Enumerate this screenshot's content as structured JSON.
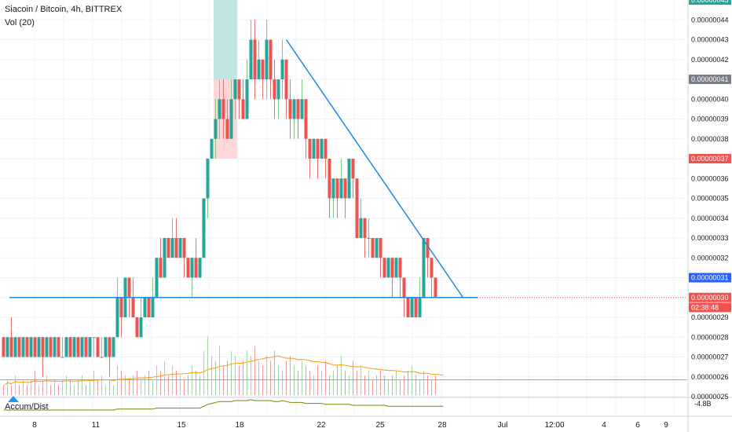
{
  "header": {
    "symbol_title": "Siacoin / Bitcoin, 4h, BITTREX",
    "volume_label": "Vol (20)",
    "indicator_label": "Accum/Dist"
  },
  "chart_data": {
    "type": "candlestick",
    "title": "Siacoin / Bitcoin, 4h, BITTREX",
    "price_axis": {
      "ticks": [
        "0.00000044",
        "0.00000043",
        "0.00000042",
        "0.00000041",
        "0.00000040",
        "0.00000039",
        "0.00000038",
        "0.00000037",
        "0.00000036",
        "0.00000035",
        "0.00000034",
        "0.00000033",
        "0.00000032",
        "0.00000031",
        "0.00000030",
        "0.00000029",
        "0.00000028",
        "0.00000027",
        "0.00000026",
        "0.00000025"
      ],
      "range": [
        2.5e-07,
        4.5e-07
      ]
    },
    "indicator_axis": {
      "ticks": [
        "-4.8B"
      ]
    },
    "time_axis": {
      "ticks": [
        "8",
        "11",
        "15",
        "18",
        "22",
        "25",
        "28",
        "Jul",
        "12:00",
        "4",
        "6",
        "9"
      ]
    },
    "price_tags": [
      {
        "label": "0.00000045",
        "color": "#26a69a",
        "value": 4.5e-07
      },
      {
        "label": "0.00000041",
        "color": "#787b86",
        "value": 4.1e-07
      },
      {
        "label": "0.00000037",
        "color": "#ef5350",
        "value": 3.7e-07
      },
      {
        "label": "0.00000031",
        "color": "#2962ff",
        "value": 3.1e-07
      },
      {
        "label": "0.00000030",
        "color": "#ef5350",
        "value": 3e-07
      },
      {
        "label": "02:38:48",
        "color": "#ef5350",
        "value": 2.95e-07
      }
    ],
    "candles": [
      {
        "o": 28,
        "c": 27,
        "h": 28,
        "l": 27
      },
      {
        "o": 27,
        "c": 28,
        "h": 28,
        "l": 27
      },
      {
        "o": 28,
        "c": 27,
        "h": 29,
        "l": 27
      },
      {
        "o": 27,
        "c": 28,
        "h": 28,
        "l": 27
      },
      {
        "o": 28,
        "c": 27,
        "h": 28,
        "l": 27
      },
      {
        "o": 27,
        "c": 28,
        "h": 28,
        "l": 27
      },
      {
        "o": 28,
        "c": 27,
        "h": 28,
        "l": 27
      },
      {
        "o": 27,
        "c": 28,
        "h": 28,
        "l": 27
      },
      {
        "o": 28,
        "c": 27,
        "h": 28,
        "l": 27
      },
      {
        "o": 27,
        "c": 28,
        "h": 28,
        "l": 27
      },
      {
        "o": 28,
        "c": 27,
        "h": 28,
        "l": 26
      },
      {
        "o": 27,
        "c": 28,
        "h": 28,
        "l": 27
      },
      {
        "o": 28,
        "c": 27,
        "h": 28,
        "l": 27
      },
      {
        "o": 27,
        "c": 28,
        "h": 28,
        "l": 27
      },
      {
        "o": 28,
        "c": 27,
        "h": 28,
        "l": 27
      },
      {
        "o": 27,
        "c": 27,
        "h": 28,
        "l": 27
      },
      {
        "o": 27,
        "c": 28,
        "h": 28,
        "l": 27
      },
      {
        "o": 28,
        "c": 27,
        "h": 28,
        "l": 27
      },
      {
        "o": 27,
        "c": 28,
        "h": 28,
        "l": 27
      },
      {
        "o": 28,
        "c": 27,
        "h": 28,
        "l": 27
      },
      {
        "o": 27,
        "c": 28,
        "h": 28,
        "l": 27
      },
      {
        "o": 28,
        "c": 27,
        "h": 28,
        "l": 27
      },
      {
        "o": 27,
        "c": 28,
        "h": 28,
        "l": 27
      },
      {
        "o": 28,
        "c": 28,
        "h": 28,
        "l": 27
      },
      {
        "o": 28,
        "c": 27,
        "h": 28,
        "l": 27
      },
      {
        "o": 27,
        "c": 27,
        "h": 28,
        "l": 27
      },
      {
        "o": 27,
        "c": 28,
        "h": 28,
        "l": 27
      },
      {
        "o": 28,
        "c": 27,
        "h": 28,
        "l": 26
      },
      {
        "o": 27,
        "c": 28,
        "h": 28,
        "l": 27
      },
      {
        "o": 28,
        "c": 30,
        "h": 31,
        "l": 28
      },
      {
        "o": 30,
        "c": 29,
        "h": 30,
        "l": 28
      },
      {
        "o": 29,
        "c": 31,
        "h": 31,
        "l": 29
      },
      {
        "o": 31,
        "c": 30,
        "h": 31,
        "l": 29
      },
      {
        "o": 30,
        "c": 29,
        "h": 31,
        "l": 29
      },
      {
        "o": 29,
        "c": 28,
        "h": 29,
        "l": 28
      },
      {
        "o": 28,
        "c": 29,
        "h": 30,
        "l": 28
      },
      {
        "o": 29,
        "c": 30,
        "h": 30,
        "l": 29
      },
      {
        "o": 30,
        "c": 29,
        "h": 30,
        "l": 29
      },
      {
        "o": 29,
        "c": 30,
        "h": 31,
        "l": 29
      },
      {
        "o": 30,
        "c": 32,
        "h": 32,
        "l": 30
      },
      {
        "o": 32,
        "c": 31,
        "h": 33,
        "l": 31
      },
      {
        "o": 31,
        "c": 33,
        "h": 33,
        "l": 31
      },
      {
        "o": 33,
        "c": 32,
        "h": 33,
        "l": 32
      },
      {
        "o": 32,
        "c": 33,
        "h": 34,
        "l": 32
      },
      {
        "o": 33,
        "c": 32,
        "h": 34,
        "l": 32
      },
      {
        "o": 32,
        "c": 33,
        "h": 33,
        "l": 32
      },
      {
        "o": 33,
        "c": 32,
        "h": 33,
        "l": 31
      },
      {
        "o": 32,
        "c": 31,
        "h": 32,
        "l": 31
      },
      {
        "o": 31,
        "c": 32,
        "h": 32,
        "l": 30
      },
      {
        "o": 32,
        "c": 31,
        "h": 33,
        "l": 31
      },
      {
        "o": 31,
        "c": 32,
        "h": 32,
        "l": 31
      },
      {
        "o": 32,
        "c": 35,
        "h": 35,
        "l": 32
      },
      {
        "o": 35,
        "c": 37,
        "h": 37,
        "l": 34
      },
      {
        "o": 37,
        "c": 38,
        "h": 38,
        "l": 37
      },
      {
        "o": 38,
        "c": 39,
        "h": 40,
        "l": 37
      },
      {
        "o": 39,
        "c": 40,
        "h": 41,
        "l": 38
      },
      {
        "o": 40,
        "c": 39,
        "h": 41,
        "l": 38
      },
      {
        "o": 39,
        "c": 38,
        "h": 40,
        "l": 38
      },
      {
        "o": 38,
        "c": 40,
        "h": 41,
        "l": 38
      },
      {
        "o": 40,
        "c": 41,
        "h": 41,
        "l": 39
      },
      {
        "o": 41,
        "c": 40,
        "h": 41,
        "l": 39
      },
      {
        "o": 40,
        "c": 39,
        "h": 41,
        "l": 39
      },
      {
        "o": 39,
        "c": 41,
        "h": 42,
        "l": 39
      },
      {
        "o": 41,
        "c": 43,
        "h": 44,
        "l": 41
      },
      {
        "o": 43,
        "c": 41,
        "h": 44,
        "l": 40
      },
      {
        "o": 41,
        "c": 42,
        "h": 43,
        "l": 41
      },
      {
        "o": 42,
        "c": 41,
        "h": 42,
        "l": 40
      },
      {
        "o": 41,
        "c": 43,
        "h": 44,
        "l": 40
      },
      {
        "o": 43,
        "c": 41,
        "h": 43,
        "l": 40
      },
      {
        "o": 41,
        "c": 40,
        "h": 42,
        "l": 39
      },
      {
        "o": 40,
        "c": 41,
        "h": 41,
        "l": 39
      },
      {
        "o": 41,
        "c": 42,
        "h": 43,
        "l": 40
      },
      {
        "o": 42,
        "c": 40,
        "h": 42,
        "l": 39
      },
      {
        "o": 40,
        "c": 39,
        "h": 41,
        "l": 38
      },
      {
        "o": 39,
        "c": 40,
        "h": 40,
        "l": 38
      },
      {
        "o": 40,
        "c": 39,
        "h": 40,
        "l": 38
      },
      {
        "o": 39,
        "c": 40,
        "h": 41,
        "l": 39
      },
      {
        "o": 40,
        "c": 38,
        "h": 40,
        "l": 37
      },
      {
        "o": 38,
        "c": 37,
        "h": 38,
        "l": 36
      },
      {
        "o": 37,
        "c": 38,
        "h": 38,
        "l": 37
      },
      {
        "o": 38,
        "c": 37,
        "h": 38,
        "l": 36
      },
      {
        "o": 37,
        "c": 38,
        "h": 38,
        "l": 37
      },
      {
        "o": 38,
        "c": 37,
        "h": 38,
        "l": 36
      },
      {
        "o": 37,
        "c": 35,
        "h": 37,
        "l": 34
      },
      {
        "o": 35,
        "c": 36,
        "h": 36,
        "l": 34
      },
      {
        "o": 36,
        "c": 35,
        "h": 36,
        "l": 34
      },
      {
        "o": 35,
        "c": 36,
        "h": 37,
        "l": 35
      },
      {
        "o": 36,
        "c": 35,
        "h": 36,
        "l": 34
      },
      {
        "o": 35,
        "c": 37,
        "h": 37,
        "l": 35
      },
      {
        "o": 37,
        "c": 36,
        "h": 37,
        "l": 35
      },
      {
        "o": 36,
        "c": 33,
        "h": 36,
        "l": 33
      },
      {
        "o": 33,
        "c": 34,
        "h": 35,
        "l": 33
      },
      {
        "o": 34,
        "c": 33,
        "h": 34,
        "l": 32
      },
      {
        "o": 33,
        "c": 33,
        "h": 34,
        "l": 32
      },
      {
        "o": 33,
        "c": 32,
        "h": 33,
        "l": 32
      },
      {
        "o": 32,
        "c": 33,
        "h": 33,
        "l": 32
      },
      {
        "o": 33,
        "c": 32,
        "h": 33,
        "l": 31
      },
      {
        "o": 32,
        "c": 31,
        "h": 32,
        "l": 31
      },
      {
        "o": 31,
        "c": 32,
        "h": 32,
        "l": 31
      },
      {
        "o": 32,
        "c": 31,
        "h": 32,
        "l": 30
      },
      {
        "o": 31,
        "c": 32,
        "h": 32,
        "l": 31
      },
      {
        "o": 32,
        "c": 31,
        "h": 32,
        "l": 30
      },
      {
        "o": 31,
        "c": 30,
        "h": 31,
        "l": 29
      },
      {
        "o": 30,
        "c": 29,
        "h": 30,
        "l": 29
      },
      {
        "o": 29,
        "c": 30,
        "h": 30,
        "l": 29
      },
      {
        "o": 30,
        "c": 29,
        "h": 30,
        "l": 29
      },
      {
        "o": 29,
        "c": 30,
        "h": 31,
        "l": 29
      },
      {
        "o": 30,
        "c": 33,
        "h": 33,
        "l": 30
      },
      {
        "o": 33,
        "c": 32,
        "h": 33,
        "l": 31
      },
      {
        "o": 32,
        "c": 31,
        "h": 32,
        "l": 30
      },
      {
        "o": 31,
        "c": 30,
        "h": 31,
        "l": 30
      }
    ],
    "volumes": [
      2,
      3,
      2,
      4,
      2,
      3,
      2,
      3,
      5,
      2,
      3,
      4,
      2,
      3,
      2,
      3,
      4,
      3,
      2,
      3,
      4,
      2,
      3,
      5,
      3,
      4,
      2,
      3,
      2,
      6,
      5,
      4,
      3,
      4,
      5,
      3,
      4,
      5,
      3,
      6,
      5,
      7,
      4,
      6,
      5,
      4,
      3,
      4,
      6,
      5,
      4,
      9,
      12,
      8,
      7,
      10,
      6,
      7,
      9,
      8,
      6,
      7,
      9,
      8,
      10,
      7,
      6,
      8,
      7,
      9,
      6,
      5,
      7,
      8,
      6,
      5,
      7,
      6,
      5,
      4,
      6,
      5,
      7,
      4,
      5,
      6,
      8,
      5,
      4,
      7,
      5,
      6,
      4,
      5,
      3,
      4,
      5,
      4,
      3,
      4,
      5,
      3,
      4,
      5,
      6,
      4,
      3,
      5,
      4,
      3,
      4,
      5,
      3
    ],
    "accum_dist": [
      0,
      0,
      0,
      0,
      0,
      0,
      0,
      0,
      0,
      0,
      0,
      0,
      0,
      0,
      0,
      0,
      0,
      0,
      0,
      0,
      0,
      0,
      0,
      0,
      0,
      0,
      0,
      0,
      0,
      1,
      1,
      1,
      1,
      1,
      1,
      1,
      1,
      1,
      1,
      2,
      2,
      2,
      2,
      2,
      2,
      2,
      2,
      2,
      2,
      2,
      2,
      4,
      6,
      7,
      8,
      9,
      9,
      9,
      9,
      10,
      10,
      10,
      10,
      11,
      10,
      10,
      10,
      10,
      10,
      9,
      9,
      10,
      9,
      8,
      8,
      8,
      8,
      7,
      7,
      7,
      7,
      7,
      6,
      6,
      6,
      6,
      6,
      6,
      6,
      5,
      5,
      5,
      5,
      5,
      5,
      5,
      5,
      5,
      4,
      4,
      4,
      4,
      4,
      4,
      4,
      4,
      4,
      4,
      4,
      4,
      4,
      4,
      4
    ],
    "horizontal_lines": [
      {
        "value": 3e-07,
        "color": "#1e88e5"
      },
      {
        "value": 2.585e-07,
        "color": "#4fc3f7"
      }
    ],
    "trendline": {
      "from": {
        "bar": 72,
        "price": 4.3e-07
      },
      "to": {
        "bar": 117,
        "price": 3e-07
      },
      "color": "#1e88e5"
    },
    "highlight_boxes": [
      {
        "from_bar": 54,
        "to_bar": 59,
        "low": 4.1e-07,
        "high": 4.5e-07,
        "color": "#b2dfdb"
      },
      {
        "from_bar": 54,
        "to_bar": 59,
        "low": 3.7e-07,
        "high": 4.1e-07,
        "color": "#ffcdd2"
      }
    ]
  }
}
